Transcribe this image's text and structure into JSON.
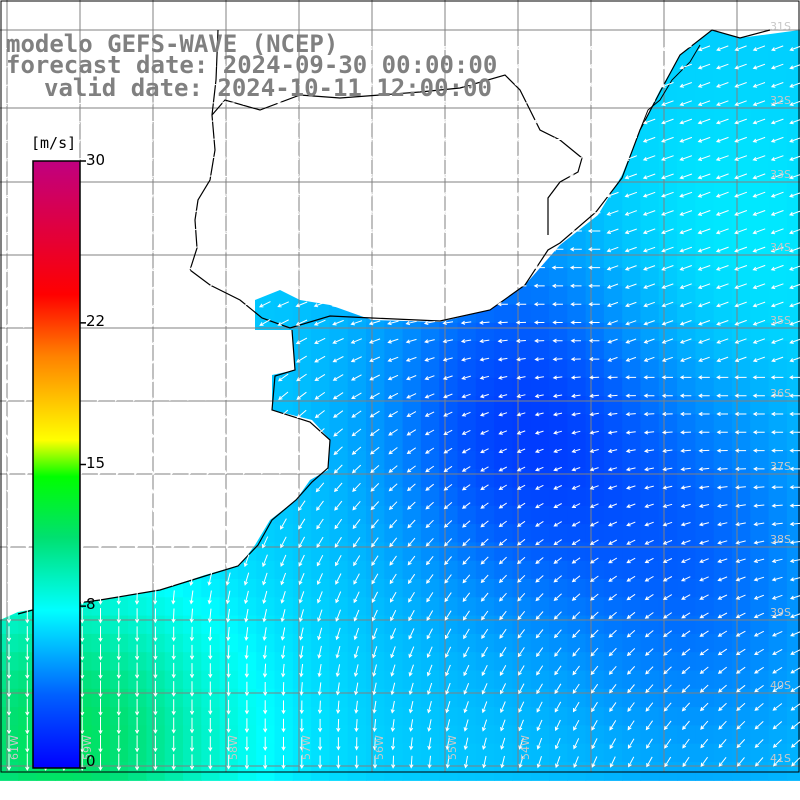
{
  "map": {
    "title_line1": "modelo GEFS-WAVE (NCEP)",
    "title_line2": "forecast date: 2024-09-30 00:00:00",
    "title_line3": "valid date: 2024-10-11 12:00:00",
    "variable": "wind",
    "region": "South Atlantic / Rio de la Plata",
    "lon_labels": [
      "61W",
      "59W",
      "58W",
      "57W",
      "56W",
      "55W",
      "54W"
    ],
    "lat_labels": [
      "31S",
      "32S",
      "33S",
      "34S",
      "35S",
      "36S",
      "37S",
      "38S",
      "39S",
      "40S",
      "41S"
    ],
    "colors": {
      "land": "#ffffff",
      "grid": "#808080",
      "coast": "#000000",
      "arrows": "#ffffff",
      "title": "#808080"
    }
  },
  "colorbar": {
    "units": "[m/s]",
    "ticks": [
      {
        "value": 30,
        "label": "30"
      },
      {
        "value": 22,
        "label": "22"
      },
      {
        "value": 15,
        "label": "15"
      },
      {
        "value": 8,
        "label": "8"
      },
      {
        "value": 0,
        "label": "0"
      }
    ],
    "min": 0,
    "max": 30,
    "palette": [
      "#0000ff",
      "#0080ff",
      "#00ffff",
      "#00ff00",
      "#ffff00",
      "#ff8000",
      "#ff0000",
      "#c00080"
    ]
  }
}
